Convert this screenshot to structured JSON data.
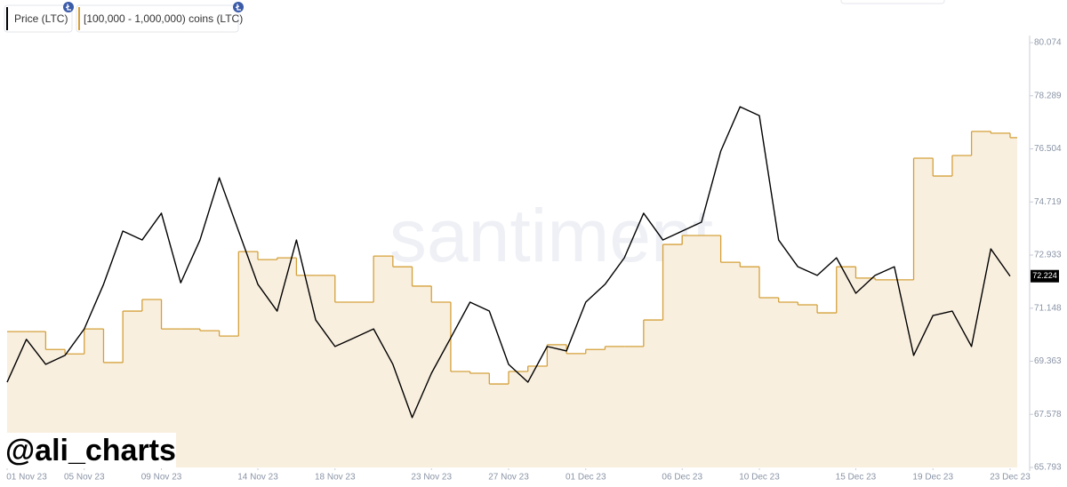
{
  "chart_data": {
    "type": "line",
    "watermark": "santiment",
    "badge": "@ali_charts",
    "x": [
      "2023-11-01",
      "2023-11-02",
      "2023-11-03",
      "2023-11-04",
      "2023-11-05",
      "2023-11-06",
      "2023-11-07",
      "2023-11-08",
      "2023-11-09",
      "2023-11-10",
      "2023-11-11",
      "2023-11-12",
      "2023-11-13",
      "2023-11-14",
      "2023-11-15",
      "2023-11-16",
      "2023-11-17",
      "2023-11-18",
      "2023-11-19",
      "2023-11-20",
      "2023-11-21",
      "2023-11-22",
      "2023-11-23",
      "2023-11-24",
      "2023-11-25",
      "2023-11-26",
      "2023-11-27",
      "2023-11-28",
      "2023-11-29",
      "2023-11-30",
      "2023-12-01",
      "2023-12-02",
      "2023-12-03",
      "2023-12-04",
      "2023-12-05",
      "2023-12-06",
      "2023-12-07",
      "2023-12-08",
      "2023-12-09",
      "2023-12-10",
      "2023-12-11",
      "2023-12-12",
      "2023-12-13",
      "2023-12-14",
      "2023-12-15",
      "2023-12-16",
      "2023-12-17",
      "2023-12-18",
      "2023-12-19",
      "2023-12-20",
      "2023-12-21",
      "2023-12-22",
      "2023-12-23"
    ],
    "series": [
      {
        "name": "Price (LTC)",
        "color": "#000000",
        "values": [
          68.66,
          70.1,
          69.26,
          69.56,
          70.45,
          71.95,
          73.74,
          73.44,
          74.34,
          72.0,
          73.44,
          75.53,
          73.74,
          71.95,
          71.05,
          73.44,
          70.75,
          69.86,
          70.15,
          70.45,
          69.26,
          67.47,
          68.96,
          70.15,
          71.35,
          71.05,
          69.26,
          68.66,
          69.86,
          69.71,
          71.35,
          71.95,
          72.84,
          74.34,
          73.44,
          73.74,
          74.04,
          76.43,
          77.92,
          77.62,
          73.44,
          72.54,
          72.25,
          72.84,
          71.65,
          72.25,
          72.54,
          69.56,
          70.9,
          71.05,
          69.86,
          73.14,
          72.224
        ]
      },
      {
        "name": "[100,000 - 1,000,000) coins (LTC)",
        "color": "#d4a03a",
        "fill": "#f9efdf",
        "step": true,
        "values": [
          70.36,
          70.36,
          69.76,
          69.61,
          70.45,
          69.32,
          71.05,
          71.44,
          70.45,
          70.45,
          70.39,
          70.21,
          73.05,
          72.78,
          72.84,
          72.25,
          72.25,
          71.35,
          71.35,
          72.9,
          72.54,
          71.89,
          71.35,
          69.02,
          68.96,
          68.6,
          69.02,
          69.2,
          69.92,
          69.62,
          69.76,
          69.86,
          69.86,
          70.75,
          73.29,
          73.59,
          73.59,
          72.69,
          72.54,
          71.5,
          71.35,
          71.26,
          70.99,
          72.54,
          72.16,
          72.1,
          72.1,
          76.19,
          75.59,
          76.28,
          77.09,
          77.03,
          76.88
        ]
      }
    ],
    "xlim": [
      "2023-11-01",
      "2023-12-23"
    ],
    "xticks": [
      {
        "value": "2023-11-01",
        "label": "01 Nov 23"
      },
      {
        "value": "2023-11-05",
        "label": "05 Nov 23"
      },
      {
        "value": "2023-11-09",
        "label": "09 Nov 23"
      },
      {
        "value": "2023-11-14",
        "label": "14 Nov 23"
      },
      {
        "value": "2023-11-18",
        "label": "18 Nov 23"
      },
      {
        "value": "2023-11-23",
        "label": "23 Nov 23"
      },
      {
        "value": "2023-11-27",
        "label": "27 Nov 23"
      },
      {
        "value": "2023-12-01",
        "label": "01 Dec 23"
      },
      {
        "value": "2023-12-06",
        "label": "06 Dec 23"
      },
      {
        "value": "2023-12-10",
        "label": "10 Dec 23"
      },
      {
        "value": "2023-12-15",
        "label": "15 Dec 23"
      },
      {
        "value": "2023-12-19",
        "label": "19 Dec 23"
      },
      {
        "value": "2023-12-23",
        "label": "23 Dec 23"
      }
    ],
    "ylim": [
      65.793,
      80.074
    ],
    "yticks": [
      65.793,
      67.578,
      69.363,
      71.148,
      72.933,
      74.719,
      76.504,
      78.289,
      80.074
    ],
    "grid": false
  }
}
